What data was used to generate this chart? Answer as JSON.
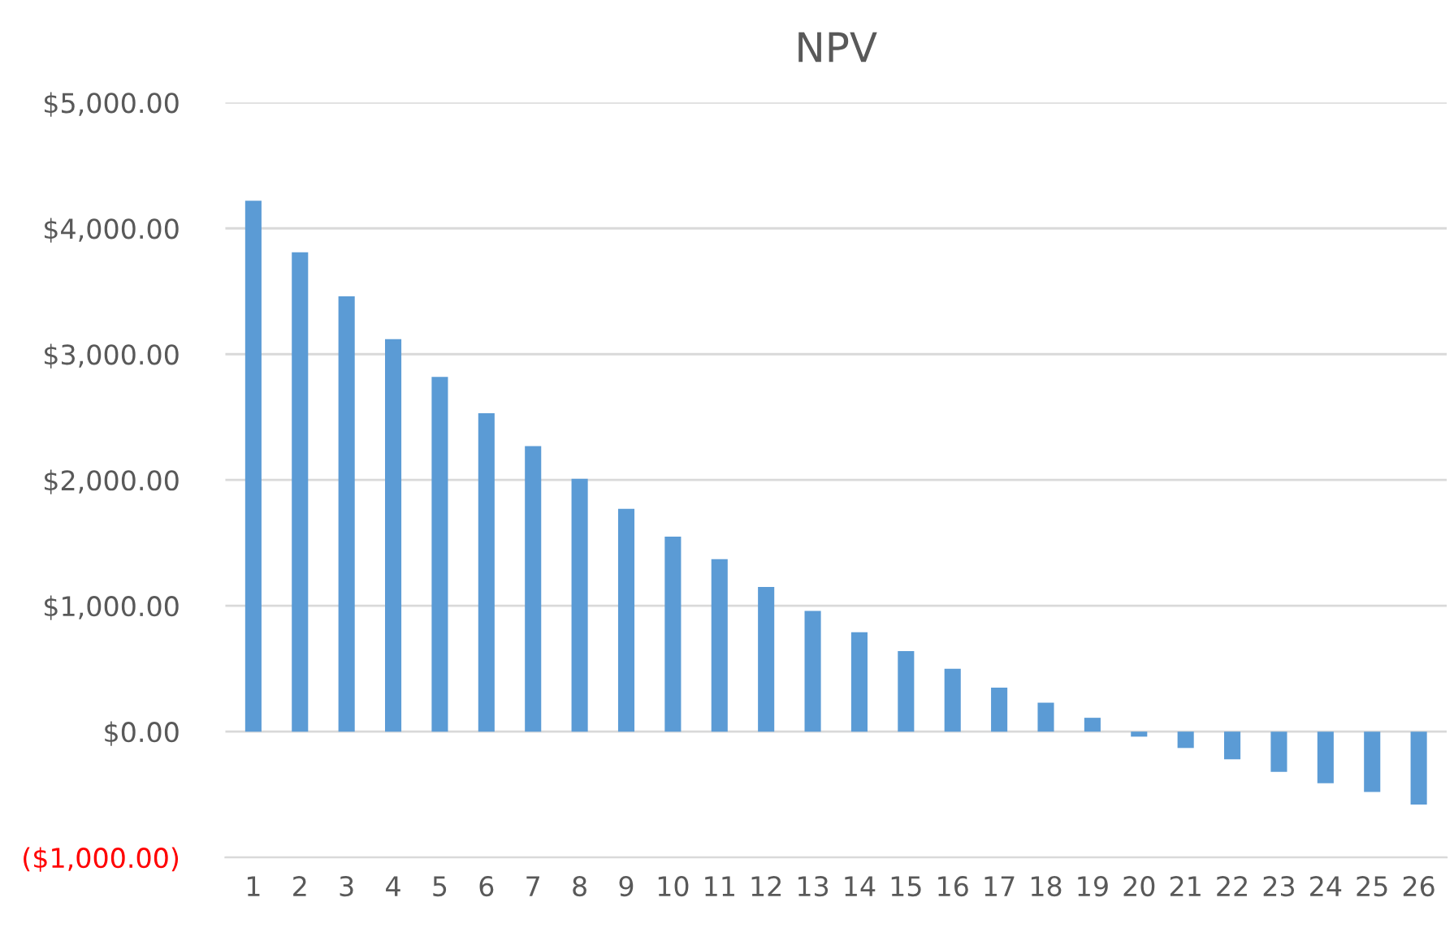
{
  "chart_data": {
    "type": "bar",
    "title": "NPV",
    "categories": [
      "1",
      "2",
      "3",
      "4",
      "5",
      "6",
      "7",
      "8",
      "9",
      "10",
      "11",
      "12",
      "13",
      "14",
      "15",
      "16",
      "17",
      "18",
      "19",
      "20",
      "21",
      "22",
      "23",
      "24",
      "25",
      "26"
    ],
    "values": [
      4220,
      3810,
      3460,
      3120,
      2820,
      2530,
      2270,
      2010,
      1770,
      1550,
      1370,
      1150,
      960,
      790,
      640,
      500,
      350,
      230,
      110,
      -40,
      -130,
      -220,
      -320,
      -410,
      -480,
      -580
    ],
    "color": "#5b9bd5",
    "ylim": [
      -1000,
      5000
    ],
    "yticks": [
      {
        "value": -1000,
        "label": "($1,000.00)"
      },
      {
        "value": 0,
        "label": "$0.00"
      },
      {
        "value": 1000,
        "label": "$1,000.00"
      },
      {
        "value": 2000,
        "label": "$2,000.00"
      },
      {
        "value": 3000,
        "label": "$3,000.00"
      },
      {
        "value": 4000,
        "label": "$4,000.00"
      },
      {
        "value": 5000,
        "label": "$5,000.00"
      }
    ],
    "grid": "y"
  }
}
